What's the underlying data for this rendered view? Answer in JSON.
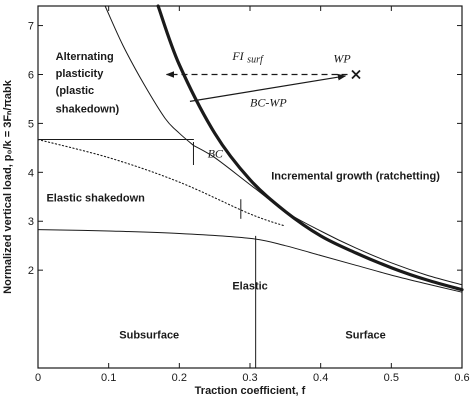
{
  "chart_data": {
    "type": "line",
    "xlabel": "Traction coefficient, f",
    "ylabel": "Normalized vertical load, p₀/k = 3Fₙ/πabk",
    "xlim": [
      0,
      0.6
    ],
    "ylim": [
      0,
      7.4
    ],
    "x_ticks": [
      "0",
      "0.1",
      "0.2",
      "0.3",
      "0.4",
      "0.5",
      "0.6"
    ],
    "y_ticks": [
      "2",
      "3",
      "4",
      "5",
      "6",
      "7"
    ],
    "grid": false,
    "series": [
      {
        "style": "thick",
        "x": [
          0.17,
          0.2,
          0.25,
          0.3,
          0.35,
          0.4,
          0.45,
          0.5,
          0.55,
          0.6
        ],
        "y": [
          7.4,
          6.2,
          4.8,
          3.85,
          3.2,
          2.7,
          2.35,
          2.05,
          1.8,
          1.6
        ]
      },
      {
        "style": "thin",
        "x": [
          0.095,
          0.12,
          0.15,
          0.18,
          0.2,
          0.22
        ],
        "y": [
          7.4,
          6.6,
          5.8,
          5.1,
          4.8,
          4.55
        ]
      },
      {
        "style": "thin",
        "x": [
          0.22,
          0.25,
          0.3,
          0.35,
          0.4,
          0.45,
          0.5,
          0.55,
          0.6
        ],
        "y": [
          4.55,
          4.3,
          3.75,
          3.2,
          2.8,
          2.45,
          2.15,
          1.9,
          1.7
        ]
      },
      {
        "style": "thin",
        "x": [
          0.0,
          0.22
        ],
        "y": [
          4.67,
          4.67
        ]
      },
      {
        "style": "dotted",
        "x": [
          0.0,
          0.1,
          0.2,
          0.3,
          0.35
        ],
        "y": [
          4.67,
          4.3,
          3.8,
          3.15,
          2.9
        ]
      },
      {
        "style": "thin",
        "x": [
          0.0,
          0.1,
          0.2,
          0.3,
          0.35,
          0.4,
          0.45,
          0.5,
          0.55,
          0.6
        ],
        "y": [
          2.83,
          2.8,
          2.75,
          2.65,
          2.5,
          2.3,
          2.1,
          1.9,
          1.72,
          1.55
        ]
      }
    ],
    "markers": [
      {
        "kind": "cross",
        "x": 0.45,
        "y": 6.0,
        "label": "WP"
      }
    ],
    "vlines": [
      {
        "x": 0.22,
        "y0": 4.15,
        "y1": 4.62
      },
      {
        "x": 0.287,
        "y0": 3.05,
        "y1": 3.45
      },
      {
        "x": 0.308,
        "y0": 0.0,
        "y1": 2.7
      }
    ],
    "annotations": [
      {
        "text": "Alternating",
        "x": 0.025,
        "y": 6.3,
        "style": "region"
      },
      {
        "text": "plasticity",
        "x": 0.025,
        "y": 5.95,
        "style": "region"
      },
      {
        "text": "(plastic",
        "x": 0.025,
        "y": 5.6,
        "style": "region"
      },
      {
        "text": "shakedown)",
        "x": 0.025,
        "y": 5.22,
        "style": "region"
      },
      {
        "text": "Elastic shakedown",
        "x": 0.012,
        "y": 3.4,
        "style": "region"
      },
      {
        "text": "Incremental growth (ratchetting)",
        "x": 0.33,
        "y": 3.85,
        "style": "region"
      },
      {
        "text": "Elastic",
        "x": 0.275,
        "y": 1.6,
        "style": "region"
      },
      {
        "text": "Subsurface",
        "x": 0.115,
        "y": 0.6,
        "style": "region"
      },
      {
        "text": "Surface",
        "x": 0.435,
        "y": 0.6,
        "style": "region"
      },
      {
        "text": "BC",
        "x": 0.24,
        "y": 4.3,
        "style": "ital"
      },
      {
        "text": "FI",
        "x": 0.275,
        "y": 6.3,
        "style": "ital"
      },
      {
        "text": "surf",
        "x": 0.296,
        "y": 6.25,
        "style": "ital-sub"
      },
      {
        "text": "WP",
        "x": 0.418,
        "y": 6.25,
        "style": "ital"
      },
      {
        "text": "BC-WP",
        "x": 0.3,
        "y": 5.35,
        "style": "ital"
      }
    ],
    "arrows": [
      {
        "style": "dashed",
        "from": [
          0.438,
          6.0
        ],
        "to": [
          0.182,
          6.0
        ]
      },
      {
        "style": "solid",
        "from": [
          0.215,
          5.45
        ],
        "to": [
          0.435,
          5.97
        ]
      }
    ]
  }
}
